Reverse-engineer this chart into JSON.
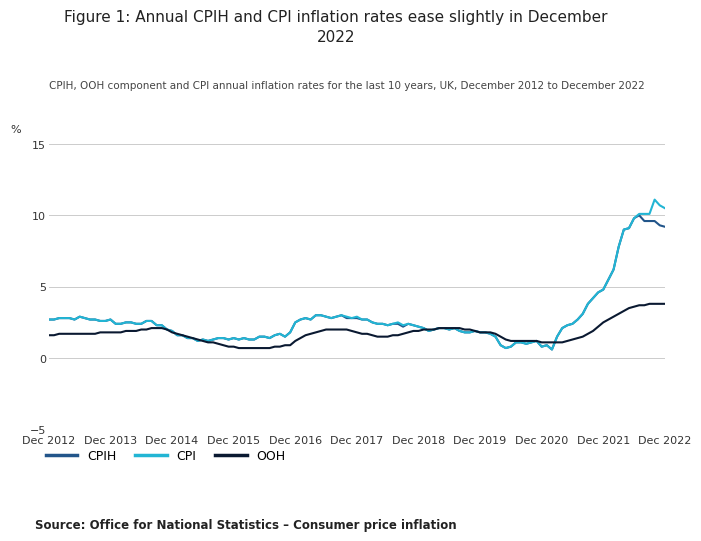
{
  "title": "Figure 1: Annual CPIH and CPI inflation rates ease slightly in December\n2022",
  "subtitle": "CPIH, OOH component and CPI annual inflation rates for the last 10 years, UK, December 2012 to December 2022",
  "source": "Source: Office for National Statistics – Consumer price inflation",
  "ylim": [
    -5,
    15
  ],
  "yticks": [
    -5,
    0,
    5,
    10,
    15
  ],
  "ylabel_top": "%",
  "background_color": "#ffffff",
  "cpih_color": "#22558a",
  "cpi_color": "#22b5d4",
  "ooh_color": "#0a1931",
  "line_width": 1.5,
  "cpih": [
    2.7,
    2.7,
    2.8,
    2.8,
    2.8,
    2.7,
    2.9,
    2.8,
    2.7,
    2.7,
    2.6,
    2.6,
    2.7,
    2.4,
    2.4,
    2.5,
    2.5,
    2.4,
    2.4,
    2.6,
    2.6,
    2.3,
    2.3,
    2.0,
    1.9,
    1.6,
    1.6,
    1.4,
    1.4,
    1.2,
    1.3,
    1.2,
    1.3,
    1.4,
    1.4,
    1.3,
    1.4,
    1.3,
    1.4,
    1.3,
    1.3,
    1.5,
    1.5,
    1.4,
    1.6,
    1.7,
    1.5,
    1.8,
    2.5,
    2.7,
    2.8,
    2.7,
    3.0,
    3.0,
    2.9,
    2.8,
    2.9,
    3.0,
    2.8,
    2.8,
    2.8,
    2.7,
    2.7,
    2.5,
    2.4,
    2.4,
    2.3,
    2.4,
    2.4,
    2.2,
    2.4,
    2.3,
    2.2,
    2.1,
    1.9,
    2.0,
    2.1,
    2.1,
    2.0,
    2.1,
    1.9,
    1.8,
    1.8,
    1.9,
    1.8,
    1.8,
    1.7,
    1.5,
    0.9,
    0.7,
    0.8,
    1.1,
    1.1,
    1.0,
    1.1,
    1.2,
    0.8,
    0.9,
    0.6,
    1.5,
    2.1,
    2.3,
    2.4,
    2.7,
    3.1,
    3.8,
    4.2,
    4.6,
    4.8,
    5.5,
    6.2,
    7.8,
    9.0,
    9.1,
    9.8,
    10.0,
    9.6,
    9.6,
    9.6,
    9.3,
    9.2
  ],
  "cpi": [
    2.7,
    2.7,
    2.8,
    2.8,
    2.8,
    2.7,
    2.9,
    2.8,
    2.7,
    2.7,
    2.6,
    2.6,
    2.7,
    2.4,
    2.4,
    2.5,
    2.5,
    2.4,
    2.4,
    2.6,
    2.6,
    2.3,
    2.3,
    2.0,
    1.9,
    1.6,
    1.6,
    1.4,
    1.4,
    1.2,
    1.3,
    1.2,
    1.3,
    1.4,
    1.4,
    1.3,
    1.4,
    1.3,
    1.4,
    1.3,
    1.3,
    1.5,
    1.5,
    1.4,
    1.6,
    1.7,
    1.5,
    1.8,
    2.5,
    2.7,
    2.8,
    2.7,
    3.0,
    3.0,
    2.9,
    2.8,
    2.9,
    3.0,
    2.9,
    2.8,
    2.9,
    2.7,
    2.7,
    2.5,
    2.4,
    2.4,
    2.3,
    2.4,
    2.5,
    2.3,
    2.4,
    2.3,
    2.2,
    2.1,
    1.9,
    2.0,
    2.1,
    2.1,
    2.0,
    2.1,
    1.9,
    1.8,
    1.8,
    1.9,
    1.8,
    1.8,
    1.7,
    1.5,
    0.9,
    0.7,
    0.8,
    1.1,
    1.1,
    1.0,
    1.1,
    1.2,
    0.8,
    0.9,
    0.6,
    1.5,
    2.1,
    2.3,
    2.4,
    2.7,
    3.1,
    3.8,
    4.2,
    4.6,
    4.8,
    5.5,
    6.2,
    7.8,
    9.0,
    9.1,
    9.8,
    10.1,
    10.1,
    10.1,
    11.1,
    10.7,
    10.5
  ],
  "ooh": [
    1.6,
    1.6,
    1.7,
    1.7,
    1.7,
    1.7,
    1.7,
    1.7,
    1.7,
    1.7,
    1.8,
    1.8,
    1.8,
    1.8,
    1.8,
    1.9,
    1.9,
    1.9,
    2.0,
    2.0,
    2.1,
    2.1,
    2.1,
    2.0,
    1.8,
    1.7,
    1.6,
    1.5,
    1.4,
    1.3,
    1.2,
    1.1,
    1.1,
    1.0,
    0.9,
    0.8,
    0.8,
    0.7,
    0.7,
    0.7,
    0.7,
    0.7,
    0.7,
    0.7,
    0.8,
    0.8,
    0.9,
    0.9,
    1.2,
    1.4,
    1.6,
    1.7,
    1.8,
    1.9,
    2.0,
    2.0,
    2.0,
    2.0,
    2.0,
    1.9,
    1.8,
    1.7,
    1.7,
    1.6,
    1.5,
    1.5,
    1.5,
    1.6,
    1.6,
    1.7,
    1.8,
    1.9,
    1.9,
    2.0,
    2.0,
    2.0,
    2.1,
    2.1,
    2.1,
    2.1,
    2.1,
    2.0,
    2.0,
    1.9,
    1.8,
    1.8,
    1.8,
    1.7,
    1.5,
    1.3,
    1.2,
    1.2,
    1.2,
    1.2,
    1.2,
    1.2,
    1.1,
    1.1,
    1.1,
    1.1,
    1.1,
    1.2,
    1.3,
    1.4,
    1.5,
    1.7,
    1.9,
    2.2,
    2.5,
    2.7,
    2.9,
    3.1,
    3.3,
    3.5,
    3.6,
    3.7,
    3.7,
    3.8,
    3.8,
    3.8,
    3.8
  ],
  "xtick_positions": [
    0,
    12,
    24,
    36,
    48,
    60,
    72,
    84,
    96,
    108,
    120
  ],
  "xtick_labels": [
    "Dec 2012",
    "Dec 2013",
    "Dec 2014",
    "Dec 2015",
    "Dec 2016",
    "Dec 2017",
    "Dec 2018",
    "Dec 2019",
    "Dec 2020",
    "Dec 2021",
    "Dec 2022"
  ]
}
